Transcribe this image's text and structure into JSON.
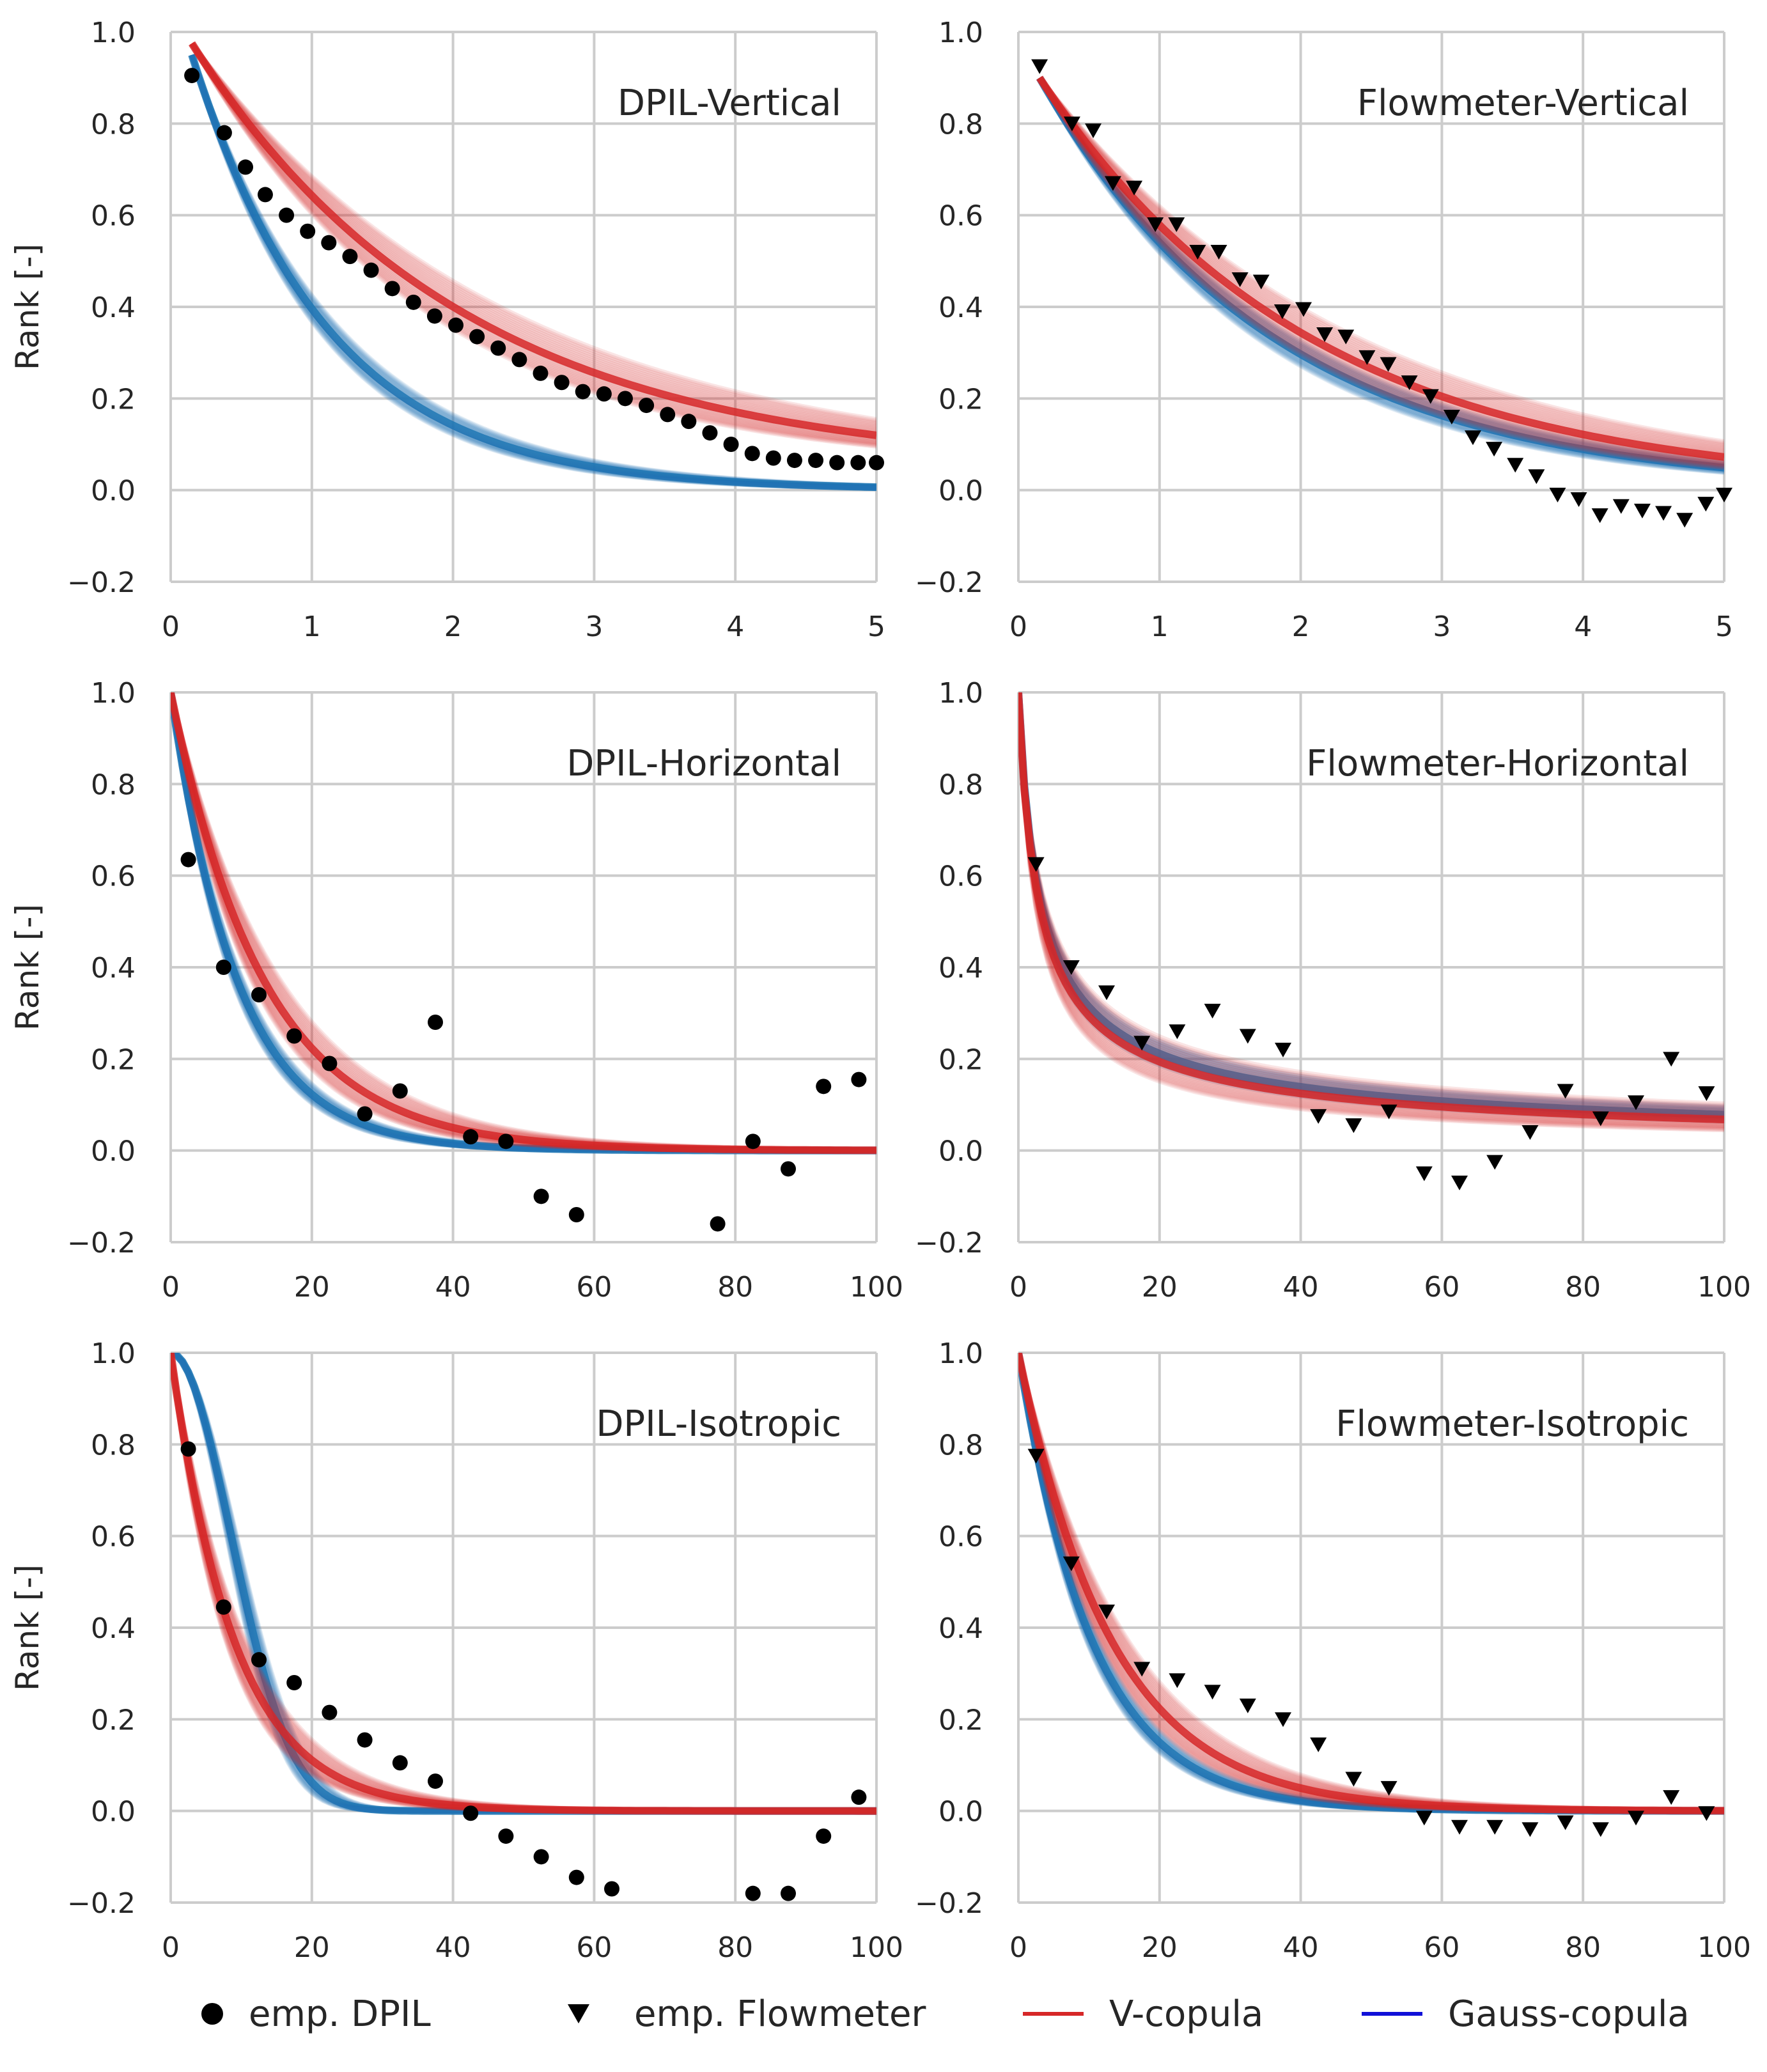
{
  "colors": {
    "vcopula": "#d62728",
    "gauss": "#1f77b4",
    "empirical": "#000000",
    "grid": "#cccccc"
  },
  "legend": {
    "dpil": "emp. DPIL",
    "flowmeter": "emp. Flowmeter",
    "vcopula": "V-copula",
    "gauss": "Gauss-copula"
  },
  "chart_data": [
    {
      "type": "line",
      "title": "DPIL-Vertical",
      "ylabel": "Rank [-]",
      "xlim": [
        0,
        5
      ],
      "ylim": [
        -0.2,
        1.0
      ],
      "grid": true,
      "xticks": [
        "0",
        "1",
        "2",
        "3",
        "4",
        "5"
      ],
      "yticks": [
        "−0.2",
        "0.0",
        "0.2",
        "0.4",
        "0.6",
        "0.8",
        "1.0"
      ],
      "empirical": {
        "name": "emp. DPIL",
        "marker": "circle",
        "x": [
          0.15,
          0.38,
          0.53,
          0.67,
          0.82,
          0.97,
          1.12,
          1.27,
          1.42,
          1.57,
          1.72,
          1.87,
          2.02,
          2.17,
          2.32,
          2.47,
          2.62,
          2.77,
          2.92,
          3.07,
          3.22,
          3.37,
          3.52,
          3.67,
          3.82,
          3.97,
          4.12,
          4.27,
          4.42,
          4.57,
          4.72,
          4.87,
          5.0
        ],
        "y": [
          0.905,
          0.78,
          0.705,
          0.645,
          0.6,
          0.565,
          0.54,
          0.51,
          0.48,
          0.44,
          0.41,
          0.38,
          0.36,
          0.335,
          0.31,
          0.285,
          0.255,
          0.235,
          0.215,
          0.21,
          0.2,
          0.185,
          0.165,
          0.15,
          0.125,
          0.1,
          0.08,
          0.07,
          0.065,
          0.065,
          0.06,
          0.06,
          0.06
        ]
      },
      "vcopula": {
        "x0": 0.15,
        "y0": 0.975,
        "k": 0.52,
        "c": 0.045
      },
      "gauss": {
        "x0": 0.15,
        "y0": 0.95,
        "k": 1.03,
        "c": 0.0
      }
    },
    {
      "type": "line",
      "title": "Flowmeter-Vertical",
      "ylabel": "",
      "xlim": [
        0,
        5
      ],
      "ylim": [
        -0.2,
        1.0
      ],
      "grid": true,
      "xticks": [
        "0",
        "1",
        "2",
        "3",
        "4",
        "5"
      ],
      "yticks": [
        "−0.2",
        "0.0",
        "0.2",
        "0.4",
        "0.6",
        "0.8",
        "1.0"
      ],
      "empirical": {
        "name": "emp. Flowmeter",
        "marker": "triangle",
        "x": [
          0.15,
          0.38,
          0.53,
          0.67,
          0.82,
          0.97,
          1.12,
          1.27,
          1.42,
          1.57,
          1.72,
          1.87,
          2.02,
          2.17,
          2.32,
          2.47,
          2.62,
          2.77,
          2.92,
          3.07,
          3.22,
          3.37,
          3.52,
          3.67,
          3.82,
          3.97,
          4.12,
          4.27,
          4.42,
          4.57,
          4.72,
          4.87,
          5.0
        ],
        "y": [
          0.925,
          0.8,
          0.785,
          0.67,
          0.66,
          0.58,
          0.58,
          0.52,
          0.52,
          0.46,
          0.455,
          0.39,
          0.395,
          0.34,
          0.335,
          0.29,
          0.275,
          0.235,
          0.205,
          0.16,
          0.115,
          0.09,
          0.055,
          0.03,
          -0.01,
          -0.02,
          -0.055,
          -0.035,
          -0.045,
          -0.05,
          -0.065,
          -0.03,
          -0.01
        ]
      },
      "vcopula": {
        "x0": 0.15,
        "y0": 0.9,
        "k": 0.52,
        "c": 0.0
      },
      "gauss": {
        "x0": 0.15,
        "y0": 0.9,
        "k": 0.6,
        "c": 0.0
      }
    },
    {
      "type": "line",
      "title": "DPIL-Horizontal",
      "ylabel": "Rank [-]",
      "xlim": [
        0,
        100
      ],
      "ylim": [
        -0.2,
        1.0
      ],
      "grid": true,
      "xticks": [
        "0",
        "20",
        "40",
        "60",
        "80",
        "100"
      ],
      "yticks": [
        "−0.2",
        "0.0",
        "0.2",
        "0.4",
        "0.6",
        "0.8",
        "1.0"
      ],
      "empirical": {
        "name": "emp. DPIL",
        "marker": "circle",
        "x": [
          2.5,
          7.5,
          12.5,
          17.5,
          22.5,
          27.5,
          32.5,
          37.5,
          42.5,
          47.5,
          52.5,
          57.5,
          77.5,
          82.5,
          87.5,
          92.5,
          97.5
        ],
        "y": [
          0.635,
          0.4,
          0.34,
          0.25,
          0.19,
          0.08,
          0.13,
          0.28,
          0.03,
          0.02,
          -0.1,
          -0.14,
          -0.16,
          0.02,
          -0.04,
          0.14,
          0.155
        ]
      },
      "vcopula": {
        "x0": 0.0,
        "y0": 1.0,
        "k": 0.075,
        "c": 0.0
      },
      "gauss": {
        "x0": 0.0,
        "y0": 1.0,
        "k": 0.105,
        "c": 0.0
      }
    },
    {
      "type": "line",
      "title": "Flowmeter-Horizontal",
      "ylabel": "",
      "xlim": [
        0,
        100
      ],
      "ylim": [
        -0.2,
        1.0
      ],
      "grid": true,
      "xticks": [
        "0",
        "20",
        "40",
        "60",
        "80",
        "100"
      ],
      "yticks": [
        "−0.2",
        "0.0",
        "0.2",
        "0.4",
        "0.6",
        "0.8",
        "1.0"
      ],
      "empirical": {
        "name": "emp. Flowmeter",
        "marker": "triangle",
        "x": [
          2.5,
          7.5,
          12.5,
          17.5,
          22.5,
          27.5,
          32.5,
          37.5,
          42.5,
          47.5,
          52.5,
          57.5,
          62.5,
          67.5,
          72.5,
          77.5,
          82.5,
          87.5,
          92.5,
          97.5
        ],
        "y": [
          0.625,
          0.4,
          0.345,
          0.235,
          0.26,
          0.305,
          0.25,
          0.22,
          0.075,
          0.055,
          0.085,
          -0.05,
          -0.07,
          -0.025,
          0.04,
          0.13,
          0.07,
          0.105,
          0.2,
          0.125
        ]
      },
      "vcopula": {
        "x0": 0.0,
        "y0": 1.0,
        "alpha": 0.5,
        "beta": 0.95
      },
      "gauss": {
        "x0": 0.0,
        "y0": 1.0,
        "alpha": 0.5,
        "beta": 0.9
      }
    },
    {
      "type": "line",
      "title": "DPIL-Isotropic",
      "ylabel": "Rank [-]",
      "xlim": [
        0,
        100
      ],
      "ylim": [
        -0.2,
        1.0
      ],
      "grid": true,
      "xticks": [
        "0",
        "20",
        "40",
        "60",
        "80",
        "100"
      ],
      "yticks": [
        "−0.2",
        "0.0",
        "0.2",
        "0.4",
        "0.6",
        "0.8",
        "1.0"
      ],
      "empirical": {
        "name": "emp. DPIL",
        "marker": "circle",
        "x": [
          2.5,
          7.5,
          12.5,
          17.5,
          22.5,
          27.5,
          32.5,
          37.5,
          42.5,
          47.5,
          52.5,
          57.5,
          62.5,
          82.5,
          87.5,
          92.5,
          97.5
        ],
        "y": [
          0.79,
          0.445,
          0.33,
          0.28,
          0.215,
          0.155,
          0.105,
          0.065,
          -0.005,
          -0.055,
          -0.1,
          -0.145,
          -0.17,
          -0.18,
          -0.18,
          -0.055,
          0.03
        ]
      },
      "vcopula": {
        "x0": 0.0,
        "y0": 1.0,
        "k": 0.11,
        "c": 0.0
      },
      "gauss": {
        "x0": 0.0,
        "y0": 1.0,
        "gauss_sigma": 12.0
      }
    },
    {
      "type": "line",
      "title": "Flowmeter-Isotropic",
      "ylabel": "",
      "xlim": [
        0,
        100
      ],
      "ylim": [
        -0.2,
        1.0
      ],
      "grid": true,
      "xticks": [
        "0",
        "20",
        "40",
        "60",
        "80",
        "100"
      ],
      "yticks": [
        "−0.2",
        "0.0",
        "0.2",
        "0.4",
        "0.6",
        "0.8",
        "1.0"
      ],
      "empirical": {
        "name": "emp. Flowmeter",
        "marker": "triangle",
        "x": [
          2.5,
          7.5,
          12.5,
          17.5,
          22.5,
          27.5,
          32.5,
          37.5,
          42.5,
          47.5,
          52.5,
          57.5,
          62.5,
          67.5,
          72.5,
          77.5,
          82.5,
          87.5,
          92.5,
          97.5
        ],
        "y": [
          0.775,
          0.54,
          0.435,
          0.31,
          0.285,
          0.26,
          0.23,
          0.2,
          0.145,
          0.07,
          0.05,
          -0.015,
          -0.035,
          -0.035,
          -0.04,
          -0.025,
          -0.04,
          -0.015,
          0.03,
          -0.005
        ]
      },
      "vcopula": {
        "x0": 0.0,
        "y0": 1.0,
        "k": 0.075,
        "c": 0.0
      },
      "gauss": {
        "x0": 0.0,
        "y0": 1.0,
        "k": 0.095,
        "c": 0.0
      }
    }
  ]
}
